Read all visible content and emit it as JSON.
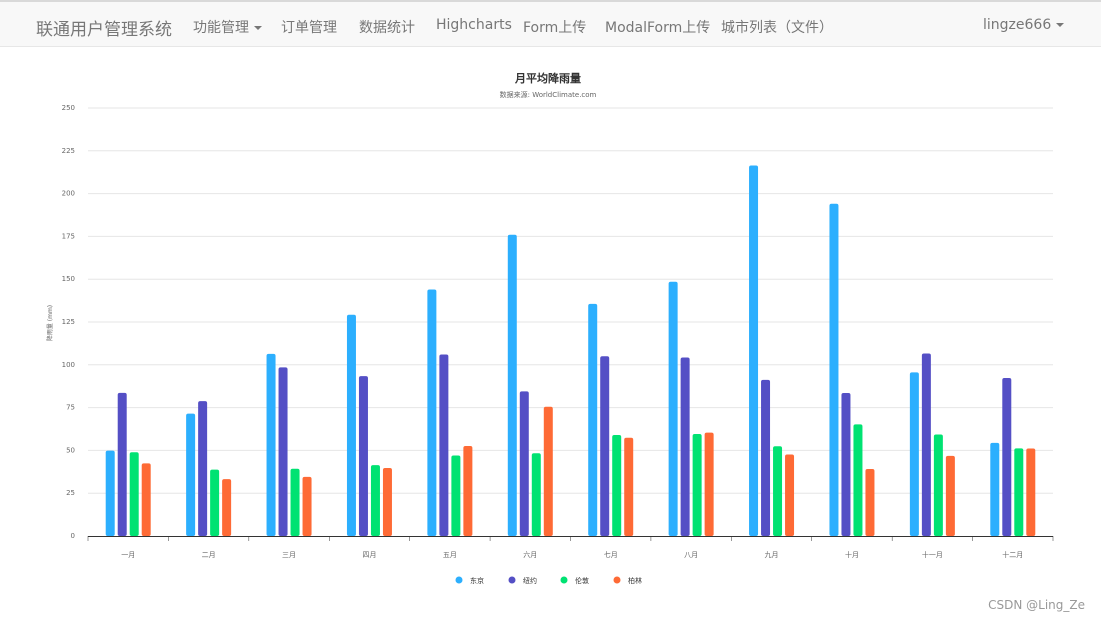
{
  "navbar": {
    "brand": "联通用户管理系统",
    "items": [
      {
        "label": "功能管理",
        "dropdown": true
      },
      {
        "label": "订单管理"
      },
      {
        "label": "数据统计"
      },
      {
        "label": "Highcharts"
      },
      {
        "label": "Form上传"
      },
      {
        "label": "ModalForm上传"
      },
      {
        "label": "城市列表（文件）"
      }
    ],
    "user": "lingze666"
  },
  "watermark": "CSDN @Ling_Ze",
  "colors": {
    "东京": "#2caffe",
    "纽约": "#544fc5",
    "伦敦": "#00e272",
    "柏林": "#fe6a35"
  },
  "chart_data": {
    "type": "bar",
    "title": "月平均降雨量",
    "subtitle": "数据来源: WorldClimate.com",
    "xlabel": "",
    "ylabel": "降雨量 (mm)",
    "ylim": [
      0,
      250
    ],
    "yticks": [
      0,
      25,
      50,
      75,
      100,
      125,
      150,
      175,
      200,
      225,
      250
    ],
    "grid": true,
    "legend_position": "bottom-center",
    "categories": [
      "一月",
      "二月",
      "三月",
      "四月",
      "五月",
      "六月",
      "七月",
      "八月",
      "九月",
      "十月",
      "十一月",
      "十二月"
    ],
    "series": [
      {
        "name": "东京",
        "values": [
          49.9,
          71.5,
          106.4,
          129.2,
          144.0,
          176.0,
          135.6,
          148.5,
          216.4,
          194.1,
          95.6,
          54.4
        ]
      },
      {
        "name": "纽约",
        "values": [
          83.6,
          78.8,
          98.5,
          93.4,
          106.0,
          84.5,
          105.0,
          104.3,
          91.2,
          83.5,
          106.6,
          92.3
        ]
      },
      {
        "name": "伦敦",
        "values": [
          48.9,
          38.8,
          39.3,
          41.4,
          47.0,
          48.3,
          59.0,
          59.6,
          52.4,
          65.2,
          59.3,
          51.2
        ]
      },
      {
        "name": "柏林",
        "values": [
          42.4,
          33.2,
          34.5,
          39.7,
          52.6,
          75.5,
          57.4,
          60.4,
          47.6,
          39.1,
          46.8,
          51.1
        ]
      }
    ]
  }
}
